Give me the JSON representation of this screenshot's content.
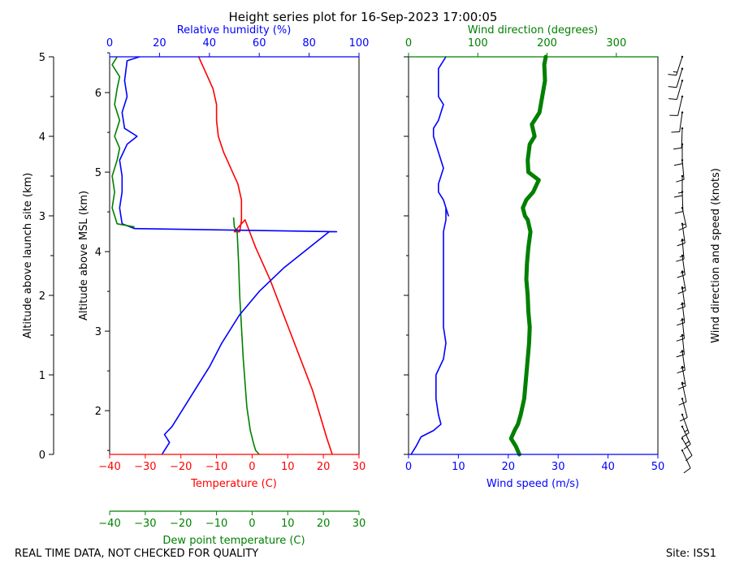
{
  "title": "Height series plot for 16-Sep-2023 17:00:05",
  "footer_left": "REAL TIME DATA, NOT CHECKED FOR QUALITY",
  "footer_right": "Site: ISS1",
  "colors": {
    "red": "#ff0000",
    "green": "#008000",
    "blue": "#0000ff",
    "black": "#000000"
  },
  "chart_data": [
    {
      "type": "line",
      "name": "thermo",
      "left_axis": {
        "label": "Altitude above launch site (km)",
        "range": [
          0,
          5
        ],
        "ticks": [
          "0",
          "1",
          "2",
          "3",
          "4",
          "5"
        ]
      },
      "msl_axis": {
        "label": "Altitude above MSL (km)",
        "range": [
          1.45,
          6.45
        ],
        "ticks": [
          "2",
          "3",
          "4",
          "5",
          "6"
        ]
      },
      "bottom_axis": {
        "label": "Temperature (C)",
        "range": [
          -40,
          30
        ],
        "ticks": [
          "−40",
          "−30",
          "−20",
          "−10",
          "0",
          "10",
          "20",
          "30"
        ]
      },
      "dew_axis": {
        "label": "Dew point temperature (C)",
        "range": [
          -40,
          30
        ],
        "ticks": [
          "−40",
          "−30",
          "−20",
          "−10",
          "0",
          "10",
          "20",
          "30"
        ]
      },
      "top_axis": {
        "label": "Relative humidity (%)",
        "range": [
          0,
          100
        ],
        "ticks": [
          "0",
          "20",
          "40",
          "60",
          "80",
          "100"
        ]
      },
      "series": [
        {
          "name": "Temperature",
          "axis": "temp",
          "points": [
            [
              22.5,
              0
            ],
            [
              21,
              0.2
            ],
            [
              17,
              0.8
            ],
            [
              11,
              1.5
            ],
            [
              5,
              2.2
            ],
            [
              1,
              2.6
            ],
            [
              -2,
              2.95
            ],
            [
              -5,
              2.8
            ],
            [
              -3.5,
              2.8
            ],
            [
              -3,
              2.95
            ],
            [
              -3,
              3.2
            ],
            [
              -4,
              3.4
            ],
            [
              -6,
              3.6
            ],
            [
              -8,
              3.8
            ],
            [
              -9.5,
              4.0
            ],
            [
              -10,
              4.2
            ],
            [
              -10,
              4.4
            ],
            [
              -11,
              4.6
            ],
            [
              -13,
              4.8
            ],
            [
              -15,
              5.0
            ]
          ]
        },
        {
          "name": "Dew point",
          "axis": "dew",
          "points": [
            [
              2,
              0
            ],
            [
              1,
              0.05
            ],
            [
              0.5,
              0.12
            ],
            [
              -0.5,
              0.3
            ],
            [
              -1,
              0.45
            ],
            [
              -1.5,
              0.6
            ],
            [
              -2,
              0.9
            ],
            [
              -2.5,
              1.2
            ],
            [
              -3,
              1.6
            ],
            [
              -3.5,
              2.0
            ],
            [
              -3.8,
              2.4
            ],
            [
              -4.2,
              2.8
            ],
            [
              -5,
              2.86
            ],
            [
              -5.2,
              2.98
            ]
          ]
        },
        {
          "name": "Relative humidity",
          "axis": "rh",
          "points": [
            [
              21,
              0
            ],
            [
              22,
              0.05
            ],
            [
              24,
              0.15
            ],
            [
              22,
              0.25
            ],
            [
              25,
              0.35
            ],
            [
              30,
              0.6
            ],
            [
              35,
              0.85
            ],
            [
              40,
              1.1
            ],
            [
              45,
              1.4
            ],
            [
              52,
              1.75
            ],
            [
              60,
              2.05
            ],
            [
              70,
              2.35
            ],
            [
              80,
              2.6
            ],
            [
              88,
              2.8
            ],
            [
              91,
              2.8
            ],
            [
              10,
              2.84
            ],
            [
              5,
              2.9
            ],
            [
              4,
              3.1
            ],
            [
              5,
              3.3
            ],
            [
              5,
              3.5
            ],
            [
              4,
              3.7
            ],
            [
              7,
              3.9
            ],
            [
              11,
              4.0
            ],
            [
              6,
              4.1
            ],
            [
              5,
              4.3
            ],
            [
              7,
              4.5
            ],
            [
              6,
              4.7
            ],
            [
              7,
              4.95
            ],
            [
              12,
              5.0
            ]
          ]
        },
        {
          "name": "Relative humidity (green)",
          "axis": "rh",
          "points": [
            [
              10,
              2.86
            ],
            [
              3,
              2.9
            ],
            [
              1,
              3.1
            ],
            [
              2,
              3.3
            ],
            [
              1,
              3.5
            ],
            [
              3,
              3.7
            ],
            [
              4,
              3.85
            ],
            [
              2,
              4.0
            ],
            [
              4,
              4.2
            ],
            [
              2,
              4.4
            ],
            [
              3,
              4.6
            ],
            [
              4,
              4.75
            ],
            [
              1,
              4.9
            ],
            [
              3,
              5.0
            ]
          ]
        }
      ]
    },
    {
      "type": "line",
      "name": "wind",
      "bottom_axis": {
        "label": "Wind speed (m/s)",
        "range": [
          0,
          50
        ],
        "ticks": [
          "0",
          "10",
          "20",
          "30",
          "40",
          "50"
        ]
      },
      "top_axis": {
        "label": "Wind direction (degrees)",
        "range": [
          0,
          360
        ],
        "ticks": [
          "0",
          "100",
          "200",
          "300"
        ]
      },
      "y_range": [
        0,
        5
      ],
      "series": [
        {
          "name": "Wind speed",
          "axis": "speed",
          "points": [
            [
              0.5,
              0
            ],
            [
              1.5,
              0.1
            ],
            [
              2.5,
              0.22
            ],
            [
              5,
              0.3
            ],
            [
              6.5,
              0.38
            ],
            [
              6,
              0.5
            ],
            [
              5.5,
              0.7
            ],
            [
              5.5,
              1.0
            ],
            [
              7,
              1.2
            ],
            [
              7.5,
              1.4
            ],
            [
              7,
              1.6
            ],
            [
              7,
              1.8
            ],
            [
              7,
              2.0
            ],
            [
              7,
              2.2
            ],
            [
              7,
              2.4
            ],
            [
              7,
              2.6
            ],
            [
              7,
              2.8
            ],
            [
              7.5,
              2.95
            ],
            [
              7.5,
              3.1
            ],
            [
              8,
              3.0
            ],
            [
              7,
              3.2
            ],
            [
              6,
              3.3
            ],
            [
              6,
              3.4
            ],
            [
              7,
              3.6
            ],
            [
              6,
              3.8
            ],
            [
              5,
              4.0
            ],
            [
              5,
              4.1
            ],
            [
              6,
              4.2
            ],
            [
              7,
              4.4
            ],
            [
              6,
              4.5
            ],
            [
              6,
              4.7
            ],
            [
              6,
              4.85
            ],
            [
              7.5,
              5.0
            ]
          ]
        },
        {
          "name": "Wind direction",
          "axis": "dir",
          "points": [
            [
              160,
              0
            ],
            [
              155,
              0.1
            ],
            [
              148,
              0.2
            ],
            [
              153,
              0.3
            ],
            [
              158,
              0.38
            ],
            [
              162,
              0.5
            ],
            [
              167,
              0.7
            ],
            [
              170,
              1.0
            ],
            [
              172,
              1.2
            ],
            [
              174,
              1.4
            ],
            [
              175,
              1.6
            ],
            [
              173,
              1.8
            ],
            [
              172,
              2.0
            ],
            [
              170,
              2.2
            ],
            [
              171,
              2.4
            ],
            [
              173,
              2.6
            ],
            [
              176,
              2.8
            ],
            [
              172,
              2.95
            ],
            [
              168,
              3.0
            ],
            [
              165,
              3.1
            ],
            [
              170,
              3.2
            ],
            [
              180,
              3.3
            ],
            [
              188,
              3.45
            ],
            [
              173,
              3.55
            ],
            [
              172,
              3.7
            ],
            [
              175,
              3.9
            ],
            [
              182,
              4.0
            ],
            [
              178,
              4.15
            ],
            [
              189,
              4.3
            ],
            [
              193,
              4.5
            ],
            [
              197,
              4.7
            ],
            [
              196,
              4.9
            ],
            [
              198,
              5.0
            ]
          ]
        }
      ]
    },
    {
      "type": "barbs",
      "name": "barbs",
      "label": "Wind direction and speed (knots)",
      "y_range": [
        0,
        5
      ],
      "barbs": [
        {
          "alt": 0.05,
          "dir": 155,
          "spd": 8
        },
        {
          "alt": 0.2,
          "dir": 150,
          "spd": 12
        },
        {
          "alt": 0.35,
          "dir": 155,
          "spd": 14
        },
        {
          "alt": 0.5,
          "dir": 160,
          "spd": 13
        },
        {
          "alt": 0.7,
          "dir": 165,
          "spd": 12
        },
        {
          "alt": 0.9,
          "dir": 168,
          "spd": 12
        },
        {
          "alt": 1.1,
          "dir": 170,
          "spd": 13
        },
        {
          "alt": 1.3,
          "dir": 172,
          "spd": 14
        },
        {
          "alt": 1.5,
          "dir": 174,
          "spd": 14
        },
        {
          "alt": 1.7,
          "dir": 174,
          "spd": 14
        },
        {
          "alt": 1.9,
          "dir": 173,
          "spd": 14
        },
        {
          "alt": 2.1,
          "dir": 172,
          "spd": 14
        },
        {
          "alt": 2.3,
          "dir": 170,
          "spd": 14
        },
        {
          "alt": 2.5,
          "dir": 172,
          "spd": 14
        },
        {
          "alt": 2.7,
          "dir": 175,
          "spd": 14
        },
        {
          "alt": 2.9,
          "dir": 172,
          "spd": 14
        },
        {
          "alt": 3.1,
          "dir": 168,
          "spd": 13
        },
        {
          "alt": 3.3,
          "dir": 178,
          "spd": 12
        },
        {
          "alt": 3.5,
          "dir": 180,
          "spd": 13
        },
        {
          "alt": 3.7,
          "dir": 175,
          "spd": 12
        },
        {
          "alt": 3.9,
          "dir": 180,
          "spd": 11
        },
        {
          "alt": 4.1,
          "dir": 182,
          "spd": 11
        },
        {
          "alt": 4.3,
          "dir": 188,
          "spd": 12
        },
        {
          "alt": 4.5,
          "dir": 193,
          "spd": 12
        },
        {
          "alt": 4.7,
          "dir": 196,
          "spd": 12
        },
        {
          "alt": 4.85,
          "dir": 197,
          "spd": 12
        },
        {
          "alt": 5.0,
          "dir": 198,
          "spd": 14
        }
      ]
    }
  ]
}
